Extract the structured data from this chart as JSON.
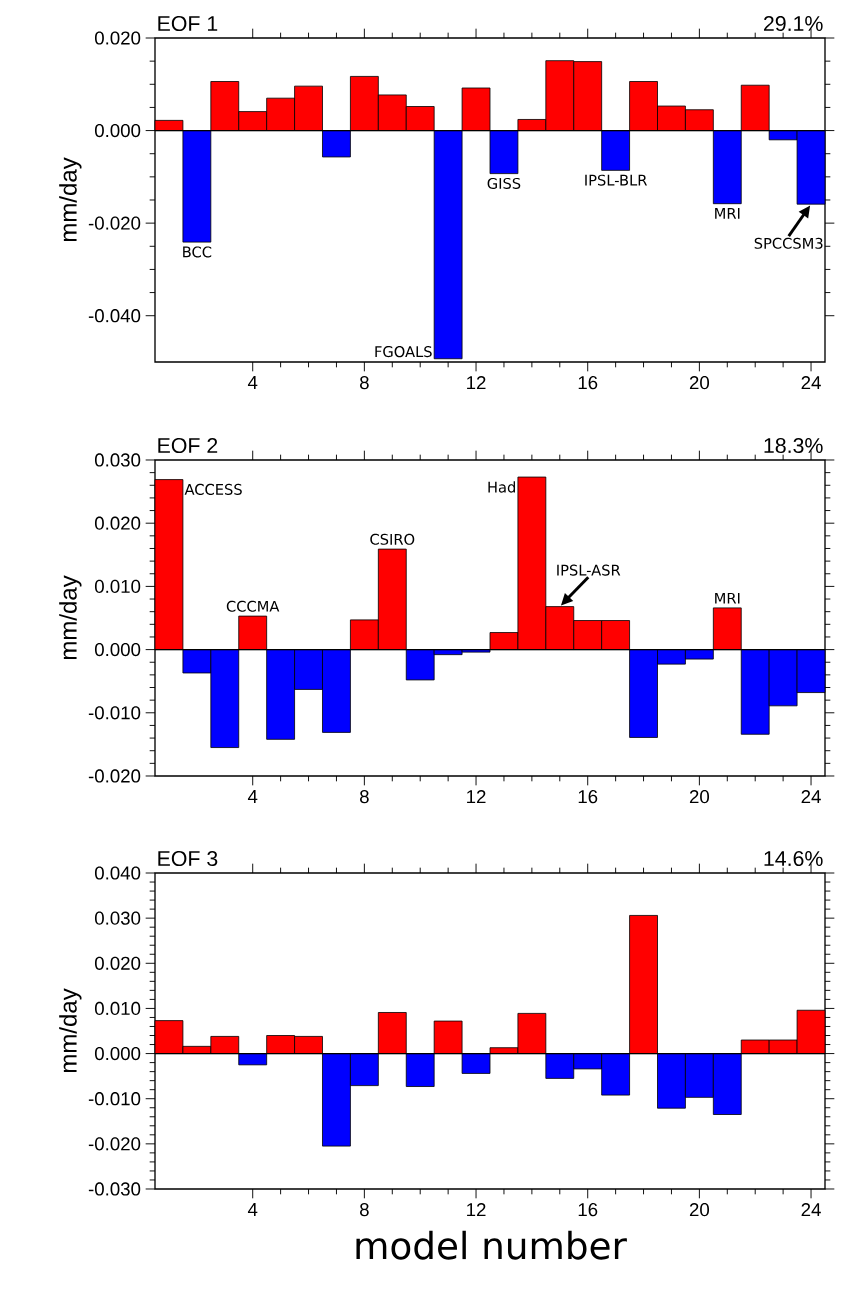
{
  "chart_data": [
    {
      "type": "bar",
      "title": "EOF 1",
      "subtitle": "29.1%",
      "ylabel": "mm/day",
      "x": [
        1,
        2,
        3,
        4,
        5,
        6,
        7,
        8,
        9,
        10,
        11,
        12,
        13,
        14,
        15,
        16,
        17,
        18,
        19,
        20,
        21,
        22,
        23,
        24
      ],
      "values": [
        0.0022,
        -0.0241,
        0.0106,
        0.0041,
        0.007,
        0.0096,
        -0.0057,
        0.0117,
        0.0077,
        0.0052,
        -0.0493,
        0.0092,
        -0.0093,
        0.0024,
        0.0151,
        0.0149,
        -0.0086,
        0.0106,
        0.0053,
        0.0045,
        -0.0158,
        0.0098,
        -0.002,
        -0.0159
      ],
      "colors": [
        "#ff0000",
        "#0000ff",
        "#ff0000",
        "#ff0000",
        "#ff0000",
        "#ff0000",
        "#0000ff",
        "#ff0000",
        "#ff0000",
        "#ff0000",
        "#0000ff",
        "#ff0000",
        "#0000ff",
        "#ff0000",
        "#ff0000",
        "#ff0000",
        "#0000ff",
        "#ff0000",
        "#ff0000",
        "#ff0000",
        "#0000ff",
        "#ff0000",
        "#0000ff",
        "#0000ff"
      ],
      "xlim": [
        0.5,
        24.5
      ],
      "xticks": [
        4,
        8,
        12,
        16,
        20,
        24
      ],
      "ylim": [
        -0.05,
        0.02
      ],
      "yticks": [
        {
          "value": -0.04,
          "label": "-0.040"
        },
        {
          "value": -0.02,
          "label": "-0.020"
        },
        {
          "value": 0,
          "label": "0.000"
        },
        {
          "value": 0.02,
          "label": "0.020"
        }
      ],
      "annotations": [
        {
          "text": "BCC",
          "x": 2,
          "y": -0.0241
        },
        {
          "text": "FGOALS",
          "x": 11,
          "y": -0.0493
        },
        {
          "text": "GISS",
          "x": 13,
          "y": -0.0093
        },
        {
          "text": "IPSL-BLR",
          "x": 17,
          "y": -0.0086
        },
        {
          "text": "MRI",
          "x": 21,
          "y": -0.0158
        },
        {
          "text": "SPCCSM3",
          "x": 24,
          "y": -0.0159
        }
      ]
    },
    {
      "type": "bar",
      "title": "EOF 2",
      "subtitle": "18.3%",
      "ylabel": "mm/day",
      "x": [
        1,
        2,
        3,
        4,
        5,
        6,
        7,
        8,
        9,
        10,
        11,
        12,
        13,
        14,
        15,
        16,
        17,
        18,
        19,
        20,
        21,
        22,
        23,
        24
      ],
      "values": [
        0.0269,
        -0.0037,
        -0.0155,
        0.0053,
        -0.0142,
        -0.0063,
        -0.0131,
        0.0047,
        0.0159,
        -0.0048,
        -0.0008,
        -0.0004,
        0.0027,
        0.0273,
        0.0068,
        0.0046,
        0.0046,
        -0.0139,
        -0.0023,
        -0.0015,
        0.0066,
        -0.0134,
        -0.0089,
        -0.0068
      ],
      "colors": [
        "#ff0000",
        "#0000ff",
        "#0000ff",
        "#ff0000",
        "#0000ff",
        "#0000ff",
        "#0000ff",
        "#ff0000",
        "#ff0000",
        "#0000ff",
        "#0000ff",
        "#0000ff",
        "#ff0000",
        "#ff0000",
        "#ff0000",
        "#ff0000",
        "#ff0000",
        "#0000ff",
        "#0000ff",
        "#0000ff",
        "#ff0000",
        "#0000ff",
        "#0000ff",
        "#0000ff"
      ],
      "xlim": [
        0.5,
        24.5
      ],
      "xticks": [
        4,
        8,
        12,
        16,
        20,
        24
      ],
      "ylim": [
        -0.02,
        0.03
      ],
      "yticks": [
        {
          "value": -0.02,
          "label": "-0.020"
        },
        {
          "value": -0.01,
          "label": "-0.010"
        },
        {
          "value": 0,
          "label": "0.000"
        },
        {
          "value": 0.01,
          "label": "0.010"
        },
        {
          "value": 0.02,
          "label": "0.020"
        },
        {
          "value": 0.03,
          "label": "0.030"
        }
      ],
      "annotations": [
        {
          "text": "ACCESS",
          "x": 1,
          "y": 0.0269
        },
        {
          "text": "CCCMA",
          "x": 4,
          "y": 0.0053
        },
        {
          "text": "CSIRO",
          "x": 9,
          "y": 0.0159
        },
        {
          "text": "Had",
          "x": 14,
          "y": 0.0273
        },
        {
          "text": "IPSL-ASR",
          "x": 15,
          "y": 0.0068
        },
        {
          "text": "MRI",
          "x": 21,
          "y": 0.0066
        }
      ]
    },
    {
      "type": "bar",
      "title": "EOF 3",
      "subtitle": "14.6%",
      "ylabel": "mm/day",
      "xlabel": "model number",
      "x": [
        1,
        2,
        3,
        4,
        5,
        6,
        7,
        8,
        9,
        10,
        11,
        12,
        13,
        14,
        15,
        16,
        17,
        18,
        19,
        20,
        21,
        22,
        23,
        24
      ],
      "values": [
        0.0073,
        0.0016,
        0.0038,
        -0.0025,
        0.004,
        0.0038,
        -0.0205,
        -0.0071,
        0.0091,
        -0.0073,
        0.0072,
        -0.0044,
        0.0013,
        0.0089,
        -0.0055,
        -0.0034,
        -0.0092,
        0.0306,
        -0.0121,
        -0.0097,
        -0.0135,
        0.003,
        0.003,
        0.0096
      ],
      "colors": [
        "#ff0000",
        "#ff0000",
        "#ff0000",
        "#0000ff",
        "#ff0000",
        "#ff0000",
        "#0000ff",
        "#0000ff",
        "#ff0000",
        "#0000ff",
        "#ff0000",
        "#0000ff",
        "#ff0000",
        "#ff0000",
        "#0000ff",
        "#0000ff",
        "#0000ff",
        "#ff0000",
        "#0000ff",
        "#0000ff",
        "#0000ff",
        "#ff0000",
        "#ff0000",
        "#ff0000"
      ],
      "xlim": [
        0.5,
        24.5
      ],
      "xticks": [
        4,
        8,
        12,
        16,
        20,
        24
      ],
      "ylim": [
        -0.03,
        0.04
      ],
      "yticks": [
        {
          "value": -0.03,
          "label": "-0.030"
        },
        {
          "value": -0.02,
          "label": "-0.020"
        },
        {
          "value": -0.01,
          "label": "-0.010"
        },
        {
          "value": 0,
          "label": "0.000"
        },
        {
          "value": 0.01,
          "label": "0.010"
        },
        {
          "value": 0.02,
          "label": "0.020"
        },
        {
          "value": 0.03,
          "label": "0.030"
        },
        {
          "value": 0.04,
          "label": "0.040"
        }
      ]
    }
  ]
}
